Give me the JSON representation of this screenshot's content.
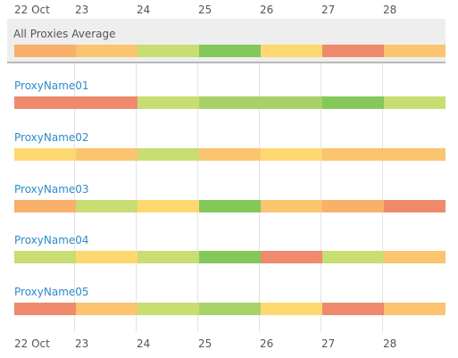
{
  "axis": {
    "ticks": [
      "22 Oct",
      "23",
      "24",
      "25",
      "26",
      "27",
      "28"
    ]
  },
  "colors": {
    "red": "#f08a6c",
    "orange": "#f8b06a",
    "light_orange": "#fbc46f",
    "yellow": "#fdd870",
    "light_green": "#c8dd72",
    "green": "#a8d268",
    "dark_green": "#84c85a",
    "link": "#2c8bc9"
  },
  "summary": {
    "label": "All Proxies Average",
    "segments": [
      "orange",
      "light_orange",
      "light_green",
      "dark_green",
      "yellow",
      "red",
      "light_orange"
    ]
  },
  "proxies": [
    {
      "name": "ProxyName01",
      "segments": [
        "red",
        "red",
        "light_green",
        "green",
        "green",
        "dark_green",
        "light_green"
      ]
    },
    {
      "name": "ProxyName02",
      "segments": [
        "yellow",
        "light_orange",
        "light_green",
        "light_orange",
        "yellow",
        "light_orange",
        "light_orange"
      ]
    },
    {
      "name": "ProxyName03",
      "segments": [
        "orange",
        "light_green",
        "yellow",
        "dark_green",
        "light_orange",
        "orange",
        "red"
      ]
    },
    {
      "name": "ProxyName04",
      "segments": [
        "light_green",
        "yellow",
        "light_green",
        "dark_green",
        "red",
        "light_green",
        "light_orange"
      ]
    },
    {
      "name": "ProxyName05",
      "segments": [
        "red",
        "light_orange",
        "light_green",
        "green",
        "yellow",
        "red",
        "light_orange"
      ]
    }
  ]
}
